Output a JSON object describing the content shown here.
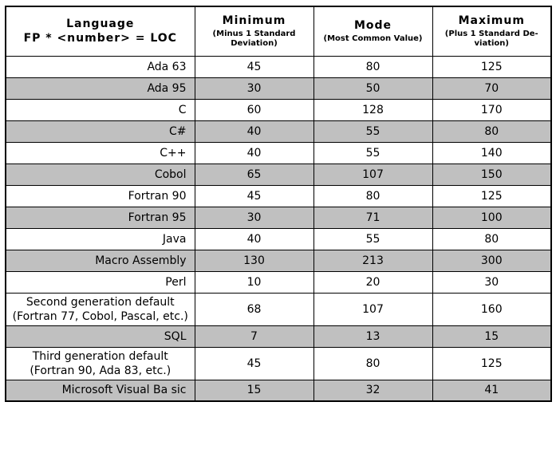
{
  "table": {
    "header": {
      "language_title": "Language",
      "language_subtitle": "FP * <number> = LOC",
      "columns": [
        {
          "title": "Minimum",
          "subtitle": "(Minus 1 Standard Deviation)"
        },
        {
          "title": "Mode",
          "subtitle": "(Most Common Value)"
        },
        {
          "title": "Maximum",
          "subtitle": "(Plus 1 Standard De-viation)"
        }
      ]
    },
    "rows": [
      {
        "language": "Ada 63",
        "minimum": "45",
        "mode": "80",
        "maximum": "125",
        "shaded": false
      },
      {
        "language": "Ada 95",
        "minimum": "30",
        "mode": "50",
        "maximum": "70",
        "shaded": true
      },
      {
        "language": "C",
        "minimum": "60",
        "mode": "128",
        "maximum": "170",
        "shaded": false
      },
      {
        "language": "C#",
        "minimum": "40",
        "mode": "55",
        "maximum": "80",
        "shaded": true
      },
      {
        "language": "C++",
        "minimum": "40",
        "mode": "55",
        "maximum": "140",
        "shaded": false
      },
      {
        "language": "Cobol",
        "minimum": "65",
        "mode": "107",
        "maximum": "150",
        "shaded": true
      },
      {
        "language": "Fortran 90",
        "minimum": "45",
        "mode": "80",
        "maximum": "125",
        "shaded": false
      },
      {
        "language": "Fortran 95",
        "minimum": "30",
        "mode": "71",
        "maximum": "100",
        "shaded": true
      },
      {
        "language": "Java",
        "minimum": "40",
        "mode": "55",
        "maximum": "80",
        "shaded": false
      },
      {
        "language": "Macro Assembly",
        "minimum": "130",
        "mode": "213",
        "maximum": "300",
        "shaded": true
      },
      {
        "language": "Perl",
        "minimum": "10",
        "mode": "20",
        "maximum": "30",
        "shaded": false
      },
      {
        "language": "Second generation default (Fortran 77, Cobol, Pascal, etc.)",
        "minimum": "68",
        "mode": "107",
        "maximum": "160",
        "shaded": false,
        "align": "center"
      },
      {
        "language": "SQL",
        "minimum": "7",
        "mode": "13",
        "maximum": "15",
        "shaded": true
      },
      {
        "language": "Third generation default (Fortran 90, Ada 83, etc.)",
        "minimum": "45",
        "mode": "80",
        "maximum": "125",
        "shaded": false,
        "align": "center"
      },
      {
        "language": "Microsoft Visual Ba sic",
        "minimum": "15",
        "mode": "32",
        "maximum": "41",
        "shaded": true
      }
    ]
  }
}
